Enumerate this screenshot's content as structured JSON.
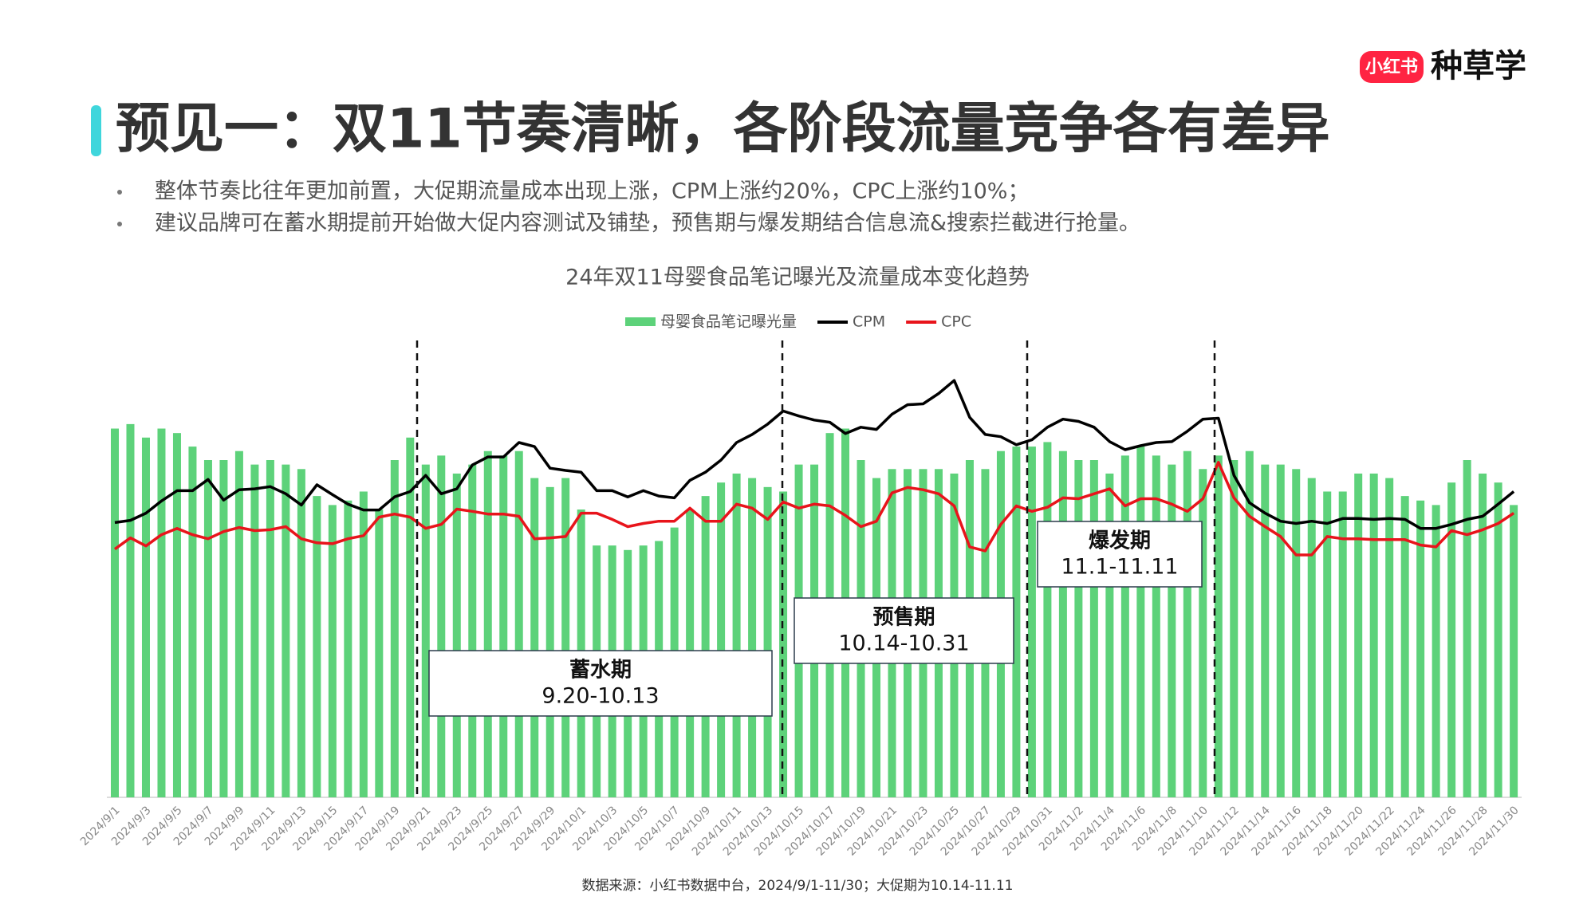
{
  "header": {
    "title": "预见一：双11节奏清晰，各阶段流量竞争各有差异",
    "bullets": [
      "整体节奏比往年更加前置，大促期流量成本出现上涨，CPM上涨约20%，CPC上涨约10%；",
      "建议品牌可在蓄水期提前开始做大促内容测试及铺垫，预售期与爆发期结合信息流&搜索拦截进行抢量。"
    ],
    "logo": {
      "badge": "小红书",
      "text": "种草学"
    }
  },
  "chart_data": {
    "type": "combo",
    "title": "24年双11母婴食品笔记曝光及流量成本变化趋势",
    "categories": [
      "2024/9/1",
      null,
      "2024/9/3",
      null,
      "2024/9/5",
      null,
      "2024/9/7",
      null,
      "2024/9/9",
      null,
      "2024/9/11",
      null,
      "2024/9/13",
      null,
      "2024/9/15",
      null,
      "2024/9/17",
      null,
      "2024/9/19",
      null,
      "2024/9/21",
      null,
      "2024/9/23",
      null,
      "2024/9/25",
      null,
      "2024/9/27",
      null,
      "2024/9/29",
      null,
      "2024/10/1",
      null,
      "2024/10/3",
      null,
      "2024/10/5",
      null,
      "2024/10/7",
      null,
      "2024/10/9",
      null,
      "2024/10/11",
      null,
      "2024/10/13",
      null,
      "2024/10/15",
      null,
      "2024/10/17",
      null,
      "2024/10/19",
      null,
      "2024/10/21",
      null,
      "2024/10/23",
      null,
      "2024/10/25",
      null,
      "2024/10/27",
      null,
      "2024/10/29",
      null,
      "2024/10/31",
      null,
      "2024/11/2",
      null,
      "2024/11/4",
      null,
      "2024/11/6",
      null,
      "2024/11/8",
      null,
      "2024/11/10",
      null,
      "2024/11/12",
      null,
      "2024/11/14",
      null,
      "2024/11/16",
      null,
      "2024/11/18",
      null,
      "2024/11/20",
      null,
      "2024/11/22",
      null,
      "2024/11/24",
      null,
      "2024/11/26",
      null,
      "2024/11/28",
      null,
      "2024/11/30"
    ],
    "series": [
      {
        "name": "母婴食品笔记曝光量",
        "type": "bar",
        "color": "#5dd27a",
        "values": [
          82,
          83,
          80,
          82,
          81,
          78,
          75,
          75,
          77,
          74,
          75,
          74,
          73,
          67,
          65,
          66,
          68,
          64,
          75,
          80,
          74,
          76,
          72,
          74,
          77,
          76,
          77,
          71,
          69,
          71,
          64,
          56,
          56,
          55,
          56,
          57,
          60,
          64,
          67,
          70,
          72,
          71,
          69,
          68,
          74,
          74,
          81,
          82,
          75,
          71,
          73,
          73,
          73,
          73,
          72,
          75,
          73,
          77,
          78,
          78,
          79,
          77,
          75,
          75,
          72,
          76,
          78,
          76,
          74,
          77,
          73,
          76,
          75,
          77,
          74,
          74,
          73,
          71,
          68,
          68,
          72,
          72,
          71,
          67,
          66,
          65,
          70,
          75,
          72,
          70,
          65
        ]
      },
      {
        "name": "CPM",
        "type": "line",
        "color": "#000000",
        "values": [
          61.1,
          61.6,
          63.2,
          65.9,
          68.2,
          68.2,
          70.7,
          66.1,
          68.4,
          68.6,
          69.1,
          67.5,
          65,
          69.5,
          67.3,
          65.2,
          63.9,
          63.9,
          66.8,
          68,
          71.6,
          67.5,
          68.6,
          73.9,
          75.7,
          75.7,
          78.9,
          78,
          73.2,
          72.7,
          72.3,
          68.2,
          68.2,
          66.8,
          68.2,
          67,
          66.6,
          70.5,
          72.3,
          75,
          78.9,
          80.7,
          83,
          85.9,
          84.8,
          83.9,
          83.4,
          80.9,
          82.3,
          81.8,
          85.2,
          87.3,
          87.5,
          89.8,
          92.7,
          84.5,
          80.7,
          80.2,
          78.4,
          79.5,
          82.3,
          84.1,
          83.6,
          82.3,
          79.1,
          77.3,
          78.2,
          78.9,
          79.1,
          81.4,
          84.1,
          84.3,
          71.6,
          65.5,
          63.2,
          61.4,
          60.9,
          61.4,
          60.9,
          62,
          62,
          61.8,
          62,
          61.8,
          59.8,
          59.8,
          60.7,
          61.8,
          62.5,
          65.2,
          68
        ]
      },
      {
        "name": "CPC",
        "type": "line",
        "color": "#e8141b",
        "values": [
          55.2,
          57.7,
          55.9,
          58.4,
          59.8,
          58.4,
          57.5,
          59.1,
          60,
          59.3,
          59.5,
          60.2,
          57.5,
          56.6,
          56.4,
          57.5,
          58.2,
          62.3,
          63,
          62.3,
          59.8,
          60.7,
          64.1,
          63.6,
          63,
          63,
          62.5,
          57.5,
          57.7,
          58,
          63.2,
          63.2,
          61.8,
          60.2,
          60.9,
          61.4,
          61.4,
          64.3,
          61.4,
          61.4,
          65.2,
          64.3,
          61.8,
          65.7,
          64.3,
          65.2,
          64.8,
          62.7,
          60.2,
          61.4,
          67.7,
          68.9,
          68.4,
          67.5,
          64.8,
          55.7,
          54.8,
          60.7,
          64.8,
          63.6,
          64.5,
          66.6,
          66.4,
          67.5,
          68.6,
          64.8,
          66.4,
          66.4,
          65.2,
          63.6,
          66.4,
          74.5,
          66.6,
          62.5,
          60.2,
          58,
          53.9,
          53.9,
          58,
          57.5,
          57.5,
          57.3,
          57.3,
          57.3,
          56.1,
          55.7,
          59.3,
          58.4,
          59.5,
          60.9,
          63.2
        ]
      }
    ],
    "ylim": [
      0,
      100
    ],
    "annotations": [
      {
        "label": "蓄水期",
        "range": "9.20-10.13"
      },
      {
        "label": "预售期",
        "range": "10.14-10.31"
      },
      {
        "label": "爆发期",
        "range": "11.1-11.11"
      }
    ]
  },
  "source": "数据来源：小红书数据中台，2024/9/1-11/30；大促期为10.14-11.11"
}
